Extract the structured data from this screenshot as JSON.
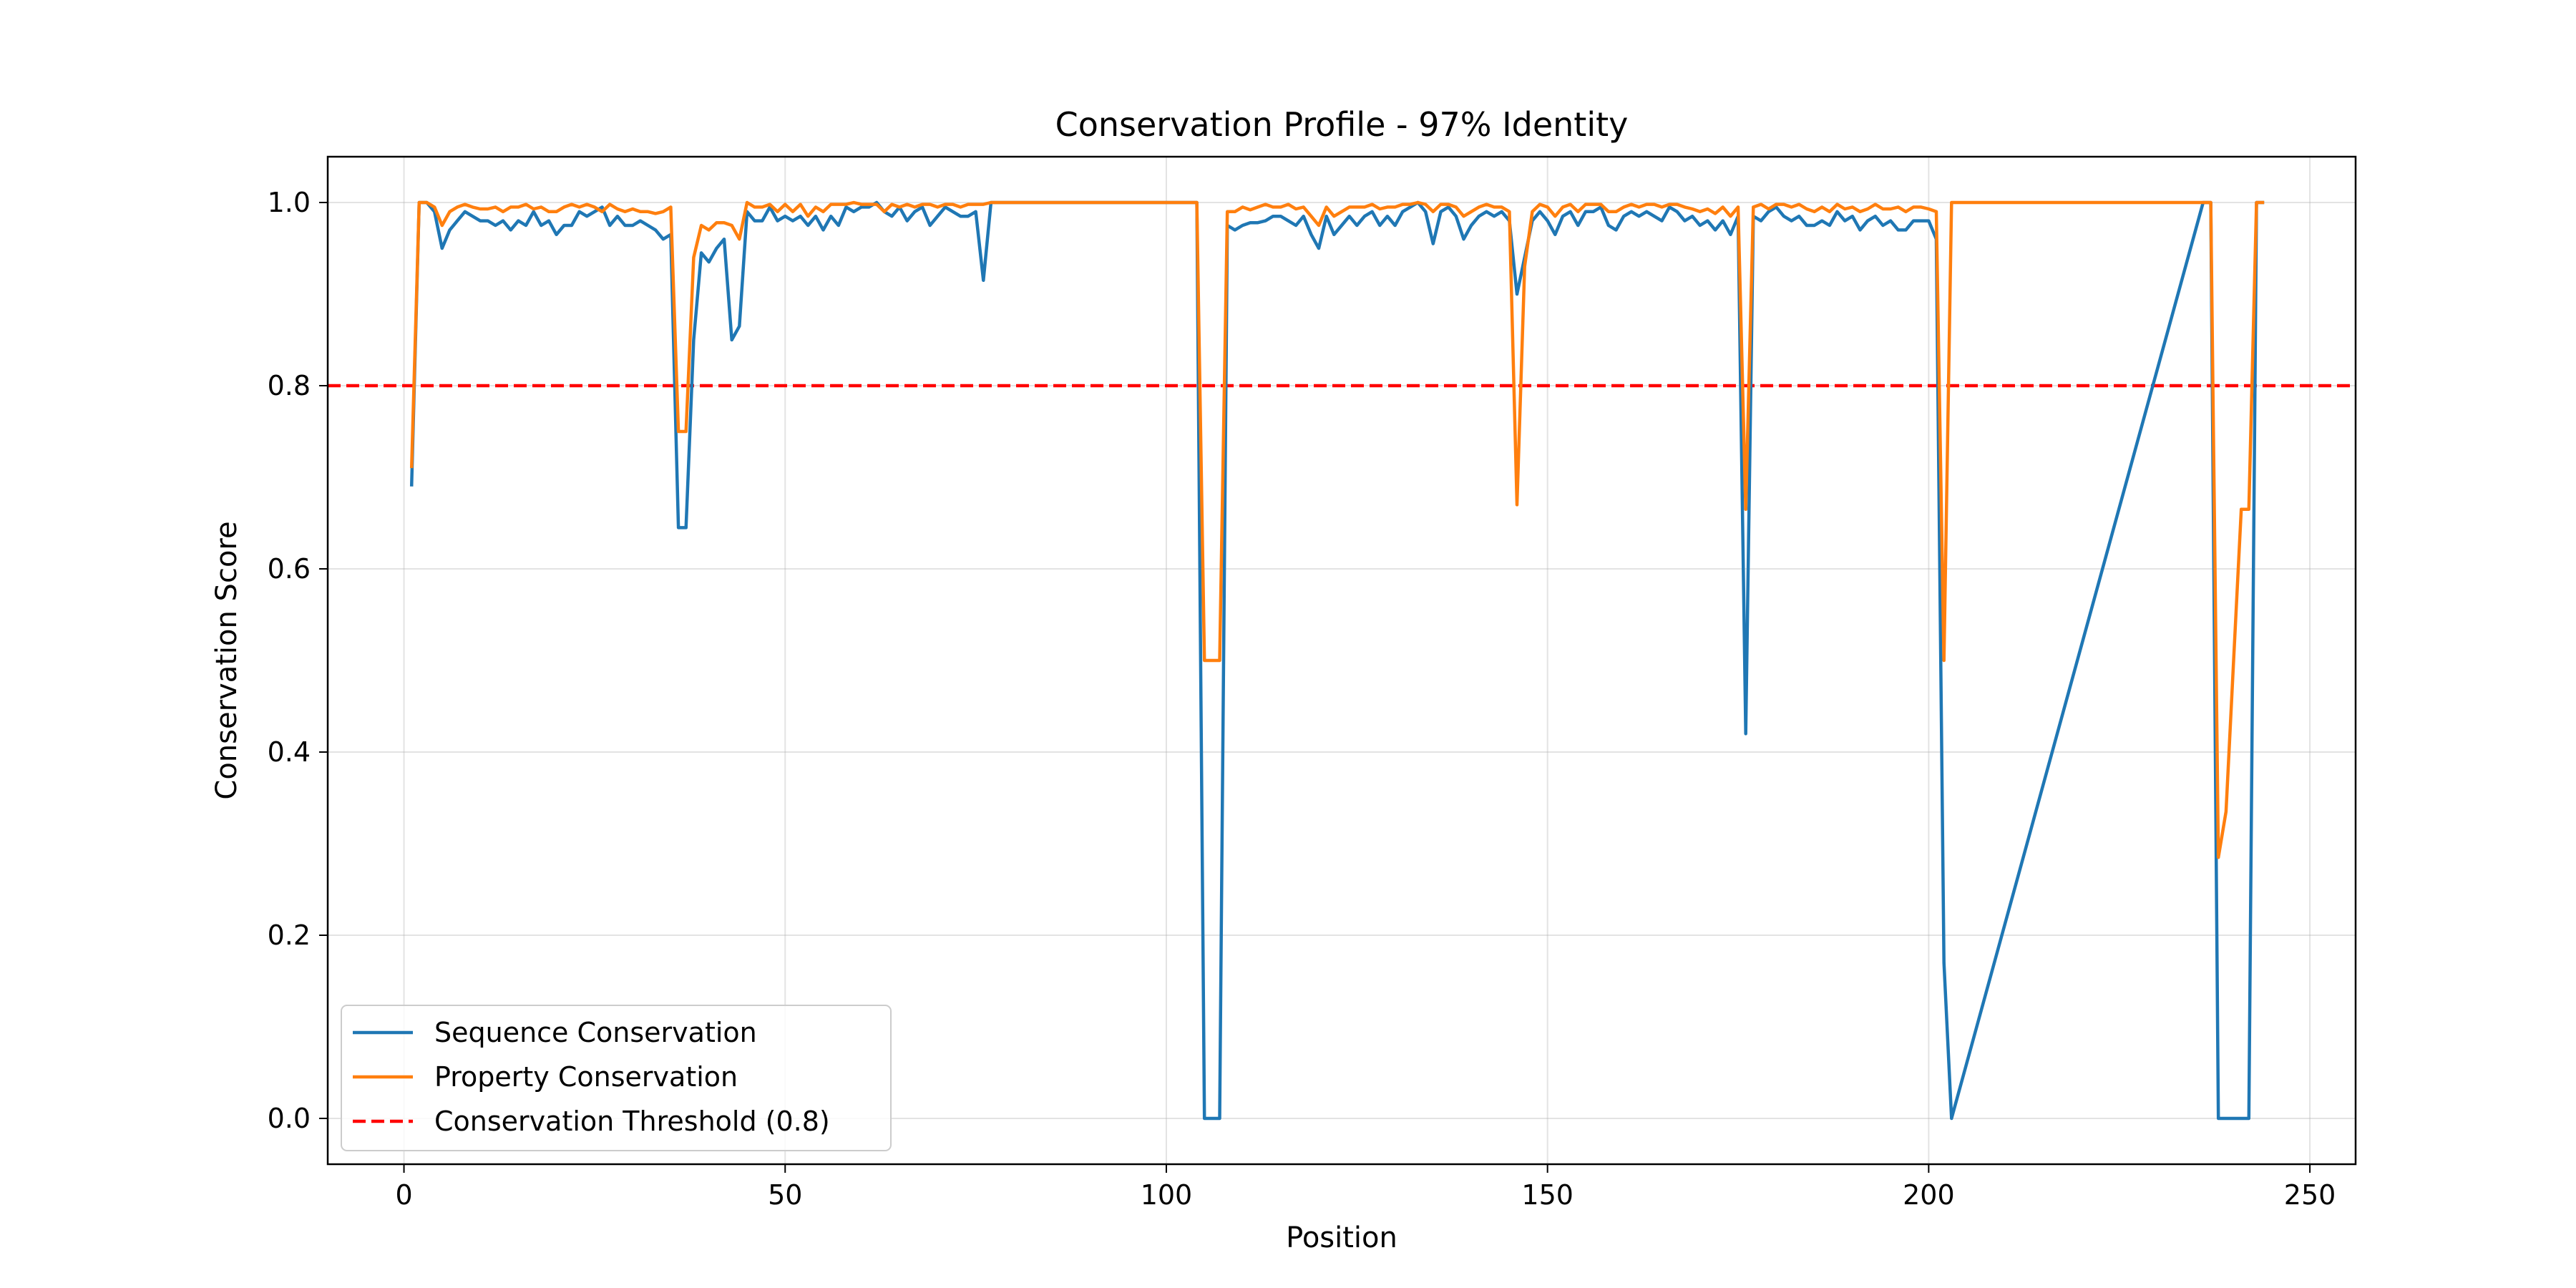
{
  "chart_data": {
    "type": "line",
    "title": "Conservation Profile - 97% Identity",
    "xlabel": "Position",
    "ylabel": "Conservation Score",
    "xlim": [
      -10,
      256
    ],
    "ylim": [
      -0.05,
      1.05
    ],
    "xticks": [
      0,
      50,
      100,
      150,
      200,
      250
    ],
    "yticks": [
      0.0,
      0.2,
      0.4,
      0.6,
      0.8,
      1.0
    ],
    "xtick_labels": [
      "0",
      "50",
      "100",
      "150",
      "200",
      "250"
    ],
    "ytick_labels": [
      "0.0",
      "0.2",
      "0.4",
      "0.6",
      "0.8",
      "1.0"
    ],
    "grid": true,
    "legend_position": "lower-left",
    "series": [
      {
        "name": "Sequence Conservation",
        "color": "#1f77b4",
        "x": [
          1,
          2,
          3,
          4,
          5,
          6,
          7,
          8,
          9,
          10,
          11,
          12,
          13,
          14,
          15,
          16,
          17,
          18,
          19,
          20,
          21,
          22,
          23,
          24,
          25,
          26,
          27,
          28,
          29,
          30,
          31,
          32,
          33,
          34,
          35,
          36,
          37,
          38,
          39,
          40,
          41,
          42,
          43,
          44,
          45,
          46,
          47,
          48,
          49,
          50,
          51,
          52,
          53,
          54,
          55,
          56,
          57,
          58,
          59,
          60,
          61,
          62,
          63,
          64,
          65,
          66,
          67,
          68,
          69,
          70,
          71,
          72,
          73,
          74,
          75,
          76,
          77,
          78,
          104,
          105,
          106,
          107,
          108,
          109,
          110,
          111,
          112,
          113,
          114,
          115,
          116,
          117,
          118,
          119,
          120,
          121,
          122,
          123,
          124,
          125,
          126,
          127,
          128,
          129,
          130,
          131,
          132,
          133,
          134,
          135,
          136,
          137,
          138,
          139,
          140,
          141,
          142,
          143,
          144,
          145,
          146,
          147,
          148,
          149,
          150,
          151,
          152,
          153,
          154,
          155,
          156,
          157,
          158,
          159,
          160,
          161,
          162,
          163,
          164,
          165,
          166,
          167,
          168,
          169,
          170,
          171,
          172,
          173,
          174,
          175,
          176,
          177,
          178,
          179,
          180,
          181,
          182,
          183,
          184,
          185,
          186,
          187,
          188,
          189,
          190,
          191,
          192,
          193,
          194,
          195,
          196,
          197,
          198,
          199,
          200,
          201,
          202,
          203,
          236,
          237,
          238,
          239,
          240,
          241,
          242,
          243,
          244
        ],
        "y": [
          0.69,
          1.0,
          1.0,
          0.99,
          0.95,
          0.97,
          0.98,
          0.99,
          0.985,
          0.98,
          0.98,
          0.975,
          0.98,
          0.97,
          0.98,
          0.975,
          0.99,
          0.975,
          0.98,
          0.965,
          0.975,
          0.975,
          0.99,
          0.985,
          0.99,
          0.995,
          0.975,
          0.985,
          0.975,
          0.975,
          0.98,
          0.975,
          0.97,
          0.96,
          0.965,
          0.645,
          0.645,
          0.85,
          0.945,
          0.935,
          0.95,
          0.96,
          0.85,
          0.865,
          0.99,
          0.98,
          0.98,
          0.995,
          0.98,
          0.985,
          0.98,
          0.985,
          0.975,
          0.985,
          0.97,
          0.985,
          0.975,
          0.995,
          0.99,
          0.995,
          0.995,
          1.0,
          0.99,
          0.985,
          0.995,
          0.98,
          0.99,
          0.995,
          0.975,
          0.985,
          0.995,
          0.99,
          0.985,
          0.985,
          0.99,
          0.915,
          1.0,
          1.0,
          1.0,
          0.0,
          0.0,
          0.0,
          0.975,
          0.97,
          0.975,
          0.978,
          0.978,
          0.98,
          0.985,
          0.985,
          0.98,
          0.975,
          0.985,
          0.965,
          0.95,
          0.985,
          0.965,
          0.975,
          0.985,
          0.975,
          0.985,
          0.99,
          0.975,
          0.985,
          0.975,
          0.99,
          0.995,
          1.0,
          0.99,
          0.955,
          0.99,
          0.995,
          0.985,
          0.96,
          0.975,
          0.985,
          0.99,
          0.985,
          0.99,
          0.98,
          0.9,
          0.94,
          0.98,
          0.99,
          0.98,
          0.965,
          0.985,
          0.99,
          0.975,
          0.99,
          0.99,
          0.995,
          0.975,
          0.97,
          0.985,
          0.99,
          0.985,
          0.99,
          0.985,
          0.98,
          0.995,
          0.99,
          0.98,
          0.985,
          0.975,
          0.98,
          0.97,
          0.98,
          0.965,
          0.985,
          0.42,
          0.985,
          0.98,
          0.99,
          0.995,
          0.985,
          0.98,
          0.985,
          0.975,
          0.975,
          0.98,
          0.975,
          0.99,
          0.98,
          0.985,
          0.97,
          0.98,
          0.985,
          0.975,
          0.98,
          0.97,
          0.97,
          0.98,
          0.98,
          0.98,
          0.96,
          0.17,
          0.0,
          1.0,
          1.0,
          0.0,
          0.0,
          0.0,
          0.0,
          0.0,
          1.0,
          1.0
        ],
        "y_note_removed": null
      },
      {
        "name": "Property Conservation",
        "color": "#ff7f0e",
        "x": [
          1,
          2,
          3,
          4,
          5,
          6,
          7,
          8,
          9,
          10,
          11,
          12,
          13,
          14,
          15,
          16,
          17,
          18,
          19,
          20,
          21,
          22,
          23,
          24,
          25,
          26,
          27,
          28,
          29,
          30,
          31,
          32,
          33,
          34,
          35,
          36,
          37,
          38,
          39,
          40,
          41,
          42,
          43,
          44,
          45,
          46,
          47,
          48,
          49,
          50,
          51,
          52,
          53,
          54,
          55,
          56,
          57,
          58,
          59,
          60,
          61,
          62,
          63,
          64,
          65,
          66,
          67,
          68,
          69,
          70,
          71,
          72,
          73,
          74,
          75,
          76,
          77,
          78,
          104,
          105,
          106,
          107,
          108,
          109,
          110,
          111,
          112,
          113,
          114,
          115,
          116,
          117,
          118,
          119,
          120,
          121,
          122,
          123,
          124,
          125,
          126,
          127,
          128,
          129,
          130,
          131,
          132,
          133,
          134,
          135,
          136,
          137,
          138,
          139,
          140,
          141,
          142,
          143,
          144,
          145,
          146,
          147,
          148,
          149,
          150,
          151,
          152,
          153,
          154,
          155,
          156,
          157,
          158,
          159,
          160,
          161,
          162,
          163,
          164,
          165,
          166,
          167,
          168,
          169,
          170,
          171,
          172,
          173,
          174,
          175,
          176,
          177,
          178,
          179,
          180,
          181,
          182,
          183,
          184,
          185,
          186,
          187,
          188,
          189,
          190,
          191,
          192,
          193,
          194,
          195,
          196,
          197,
          198,
          199,
          200,
          201,
          202,
          203,
          236,
          237,
          238,
          239,
          240,
          241,
          242,
          243,
          244
        ],
        "y": [
          0.71,
          1.0,
          1.0,
          0.995,
          0.975,
          0.99,
          0.995,
          0.998,
          0.995,
          0.993,
          0.993,
          0.995,
          0.99,
          0.995,
          0.995,
          0.998,
          0.993,
          0.995,
          0.99,
          0.99,
          0.995,
          0.998,
          0.995,
          0.998,
          0.995,
          0.99,
          0.998,
          0.993,
          0.99,
          0.993,
          0.99,
          0.99,
          0.988,
          0.99,
          0.995,
          0.75,
          0.75,
          0.94,
          0.975,
          0.97,
          0.978,
          0.978,
          0.975,
          0.96,
          1.0,
          0.995,
          0.995,
          0.998,
          0.99,
          0.998,
          0.99,
          0.998,
          0.985,
          0.995,
          0.99,
          0.998,
          0.998,
          0.998,
          1.0,
          0.998,
          0.998,
          0.998,
          0.99,
          0.998,
          0.995,
          0.998,
          0.995,
          0.998,
          0.998,
          0.995,
          0.998,
          0.998,
          0.995,
          0.998,
          0.998,
          0.998,
          1.0,
          1.0,
          1.0,
          0.5,
          0.5,
          0.5,
          0.99,
          0.99,
          0.995,
          0.992,
          0.995,
          0.998,
          0.995,
          0.995,
          0.998,
          0.993,
          0.995,
          0.985,
          0.975,
          0.995,
          0.985,
          0.99,
          0.995,
          0.995,
          0.995,
          0.998,
          0.993,
          0.995,
          0.995,
          0.998,
          0.998,
          1.0,
          0.998,
          0.99,
          0.998,
          0.998,
          0.995,
          0.985,
          0.99,
          0.995,
          0.998,
          0.995,
          0.995,
          0.99,
          0.67,
          0.93,
          0.99,
          0.998,
          0.995,
          0.985,
          0.995,
          0.998,
          0.99,
          0.998,
          0.998,
          0.998,
          0.99,
          0.99,
          0.995,
          0.998,
          0.995,
          0.998,
          0.998,
          0.995,
          0.998,
          0.998,
          0.995,
          0.993,
          0.99,
          0.993,
          0.988,
          0.995,
          0.985,
          0.995,
          0.665,
          0.995,
          0.998,
          0.993,
          0.998,
          0.998,
          0.995,
          0.998,
          0.993,
          0.99,
          0.995,
          0.99,
          0.998,
          0.993,
          0.995,
          0.99,
          0.993,
          0.998,
          0.993,
          0.993,
          0.995,
          0.99,
          0.995,
          0.995,
          0.993,
          0.99,
          0.5,
          1.0,
          1.0,
          1.0,
          0.285,
          0.335,
          0.5,
          0.665,
          0.665,
          1.0,
          1.0
        ]
      },
      {
        "name": "Conservation Threshold (0.8)",
        "color": "#ff0000",
        "style": "dashed",
        "y_constant": 0.8
      }
    ]
  }
}
